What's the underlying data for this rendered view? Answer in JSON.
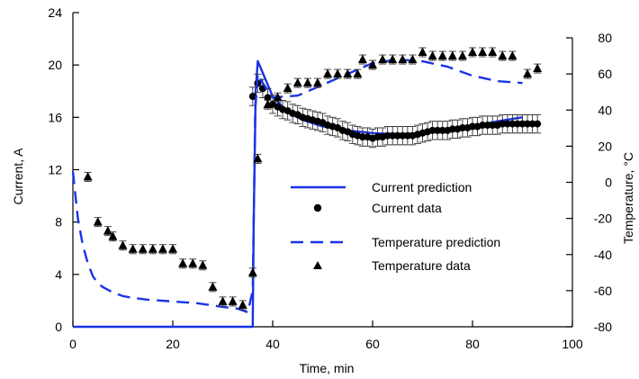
{
  "chart_data": {
    "type": "line",
    "title": "",
    "xlabel": "Time, min",
    "ylabel": "Current, A",
    "y2label": "Temperature, °C",
    "xlim": [
      0,
      100
    ],
    "ylim": [
      0,
      24
    ],
    "y2lim": [
      -80,
      80
    ],
    "xticks": [
      0,
      20,
      40,
      60,
      80,
      100
    ],
    "yticks": [
      0,
      4,
      8,
      12,
      16,
      20,
      24
    ],
    "y2ticks": [
      -80,
      -60,
      -40,
      -20,
      0,
      20,
      40,
      60,
      80
    ],
    "grid": false,
    "legend_position": "center-right",
    "series": [
      {
        "name": "Current prediction",
        "style": "solid",
        "axis": "left",
        "color": "#1a33e6",
        "x": [
          0,
          36,
          36.2,
          36.6,
          37,
          38,
          40,
          43,
          46,
          50,
          55,
          60,
          65,
          70,
          75,
          80,
          85,
          90
        ],
        "y": [
          0,
          0,
          8,
          18,
          20.3,
          19.4,
          17.6,
          16.4,
          15.8,
          15.3,
          15,
          14.8,
          14.7,
          14.8,
          15,
          15.3,
          15.7,
          16
        ]
      },
      {
        "name": "Current data",
        "style": "circle",
        "axis": "left",
        "color": "#000000",
        "x": [
          36,
          37,
          38,
          39,
          40,
          41,
          42,
          43,
          44,
          45,
          46,
          47,
          48,
          49,
          50,
          51,
          52,
          53,
          54,
          55,
          56,
          57,
          58,
          59,
          60,
          61,
          62,
          63,
          64,
          65,
          66,
          67,
          68,
          69,
          70,
          71,
          72,
          73,
          74,
          75,
          76,
          77,
          78,
          79,
          80,
          81,
          82,
          83,
          84,
          85,
          86,
          87,
          88,
          89,
          90,
          91,
          92,
          93
        ],
        "y": [
          17.6,
          18.6,
          18.2,
          17.5,
          17,
          16.8,
          16.6,
          16.5,
          16.3,
          16.2,
          16,
          15.9,
          15.8,
          15.7,
          15.6,
          15.4,
          15.3,
          15.2,
          15,
          14.9,
          14.7,
          14.6,
          14.5,
          14.5,
          14.4,
          14.5,
          14.5,
          14.6,
          14.6,
          14.6,
          14.6,
          14.6,
          14.6,
          14.7,
          14.8,
          14.9,
          15,
          15,
          15,
          15,
          15.1,
          15.1,
          15.2,
          15.2,
          15.3,
          15.3,
          15.4,
          15.4,
          15.4,
          15.4,
          15.5,
          15.5,
          15.5,
          15.5,
          15.5,
          15.5,
          15.5,
          15.5
        ],
        "error": 0.7
      },
      {
        "name": "Temperature prediction",
        "style": "dashed",
        "axis": "right",
        "color": "#1a33e6",
        "x": [
          0,
          1,
          2,
          3,
          4,
          5,
          6,
          8,
          10,
          12,
          15,
          20,
          25,
          30,
          33,
          35,
          36,
          36.5,
          37,
          38,
          40,
          45,
          50,
          55,
          60,
          65,
          70,
          75,
          80,
          85,
          90
        ],
        "y": [
          6,
          -20,
          -35,
          -45,
          -52,
          -56,
          -58,
          -61,
          -63,
          -64,
          -65,
          -66,
          -67,
          -69,
          -70,
          -72,
          -60,
          40,
          60,
          55,
          47,
          48,
          54,
          60,
          66,
          68,
          67,
          64,
          59,
          56,
          55
        ]
      },
      {
        "name": "Temperature data",
        "style": "triangle",
        "axis": "right",
        "color": "#000000",
        "x": [
          3,
          5,
          7,
          8,
          10,
          12,
          14,
          16,
          18,
          20,
          22,
          24,
          26,
          28,
          30,
          32,
          34,
          36,
          37,
          39,
          41,
          43,
          45,
          47,
          49,
          51,
          53,
          55,
          57,
          58,
          60,
          62,
          64,
          66,
          68,
          70,
          72,
          74,
          76,
          78,
          80,
          82,
          84,
          86,
          88,
          91,
          93
        ],
        "y": [
          3,
          -22,
          -27,
          -30,
          -35,
          -37,
          -37,
          -37,
          -37,
          -37,
          -45,
          -45,
          -46,
          -58,
          -66,
          -66,
          -68,
          -50,
          13,
          43,
          47,
          52,
          55,
          55,
          55,
          60,
          60,
          60,
          60,
          68,
          65,
          68,
          68,
          68,
          68,
          72,
          70,
          70,
          70,
          70,
          72,
          72,
          72,
          70,
          70,
          60,
          63
        ],
        "error": 2.5
      }
    ]
  }
}
